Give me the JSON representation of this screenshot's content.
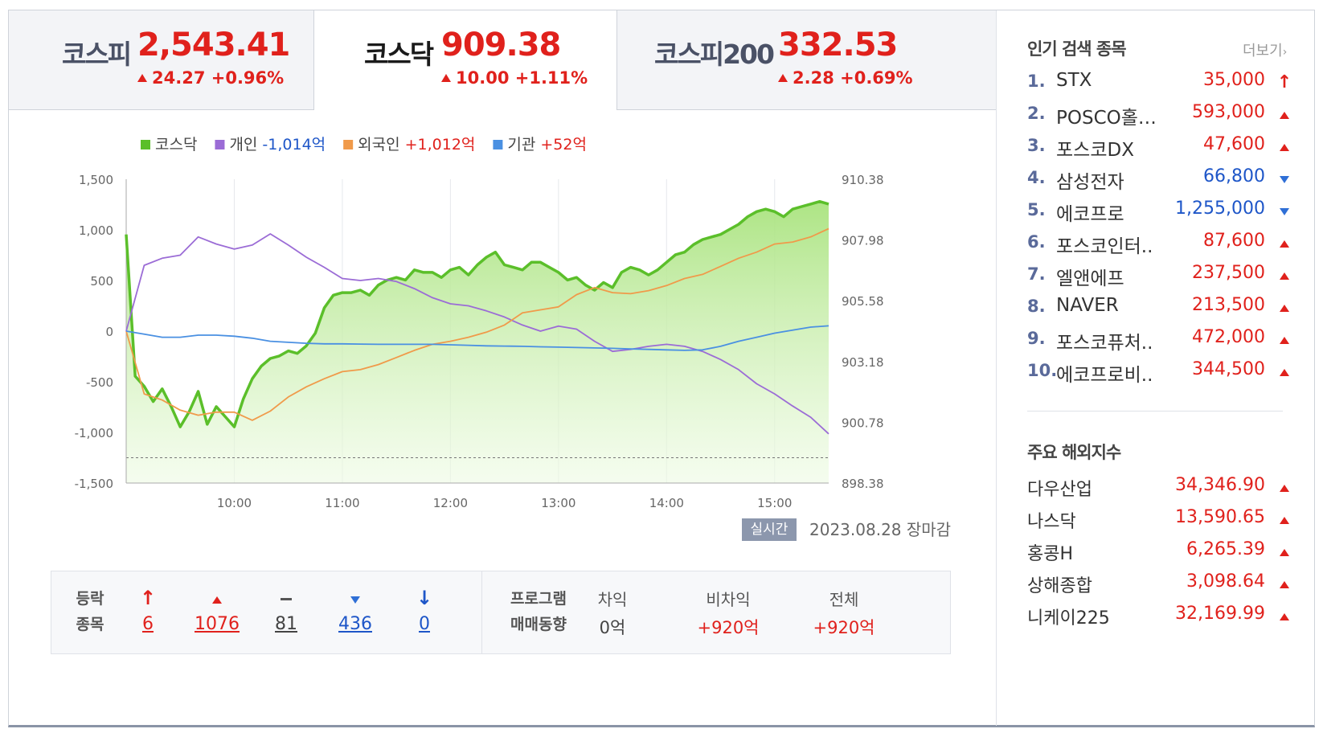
{
  "tabs": [
    {
      "name": "코스피",
      "value": "2,543.41",
      "change": "24.27 +0.96%",
      "active": false
    },
    {
      "name": "코스닥",
      "value": "909.38",
      "change": "10.00 +1.11%",
      "active": true
    },
    {
      "name": "코스피200",
      "value": "332.53",
      "change": "2.28 +0.69%",
      "active": false
    }
  ],
  "legend": [
    {
      "label": "코스닥",
      "value": "",
      "color": "#5bbf2a",
      "value_color": ""
    },
    {
      "label": "개인",
      "value": "-1,014억",
      "color": "#9b6cd6",
      "value_color": "#1e56c8"
    },
    {
      "label": "외국인",
      "value": "+1,012억",
      "color": "#f09a4a",
      "value_color": "#e0211c"
    },
    {
      "label": "기관",
      "value": "+52억",
      "color": "#4a90e2",
      "value_color": "#e0211c"
    }
  ],
  "status": {
    "realtime_label": "실시간",
    "date_label": "2023.08.28 장마감"
  },
  "chart_data": {
    "type": "line",
    "x_ticks": [
      "10:00",
      "11:00",
      "12:00",
      "13:00",
      "14:00",
      "15:00"
    ],
    "x_range": [
      "09:00",
      "15:30"
    ],
    "y_left": {
      "ticks": [
        "1,500",
        "1,000",
        "500",
        "0",
        "-500",
        "-1,000",
        "-1,500"
      ],
      "range": [
        -1500,
        1500
      ]
    },
    "y_right": {
      "ticks": [
        "910.38",
        "907.98",
        "905.58",
        "903.18",
        "900.78",
        "898.38"
      ],
      "range": [
        898.38,
        910.38
      ]
    },
    "reference_line": {
      "axis": "right",
      "value": 899.38,
      "style": "dashed"
    },
    "grid": true,
    "legend_position": "top",
    "series": [
      {
        "name": "코스닥",
        "axis": "right",
        "style": "area",
        "color": "#5bbf2a",
        "x": [
          "09:00",
          "09:05",
          "09:10",
          "09:15",
          "09:20",
          "09:25",
          "09:30",
          "09:35",
          "09:40",
          "09:45",
          "09:50",
          "09:55",
          "10:00",
          "10:05",
          "10:10",
          "10:15",
          "10:20",
          "10:25",
          "10:30",
          "10:35",
          "10:40",
          "10:45",
          "10:50",
          "10:55",
          "11:00",
          "11:05",
          "11:10",
          "11:15",
          "11:20",
          "11:25",
          "11:30",
          "11:35",
          "11:40",
          "11:45",
          "11:50",
          "11:55",
          "12:00",
          "12:05",
          "12:10",
          "12:15",
          "12:20",
          "12:25",
          "12:30",
          "12:35",
          "12:40",
          "12:45",
          "12:50",
          "12:55",
          "13:00",
          "13:05",
          "13:10",
          "13:15",
          "13:20",
          "13:25",
          "13:30",
          "13:35",
          "13:40",
          "13:45",
          "13:50",
          "13:55",
          "14:00",
          "14:05",
          "14:10",
          "14:15",
          "14:20",
          "14:25",
          "14:30",
          "14:35",
          "14:40",
          "14:45",
          "14:50",
          "14:55",
          "15:00",
          "15:05",
          "15:10",
          "15:15",
          "15:20",
          "15:25",
          "15:30"
        ],
        "y": [
          908.2,
          902.6,
          902.2,
          901.6,
          902.1,
          901.4,
          900.6,
          901.2,
          902.0,
          900.7,
          901.4,
          901.0,
          900.6,
          901.7,
          902.5,
          903.0,
          903.3,
          903.4,
          903.6,
          903.5,
          903.8,
          904.3,
          905.3,
          905.8,
          905.9,
          905.9,
          906.0,
          905.8,
          906.2,
          906.4,
          906.5,
          906.4,
          906.8,
          906.7,
          906.7,
          906.5,
          906.8,
          906.9,
          906.6,
          907.0,
          907.3,
          907.5,
          907.0,
          906.9,
          906.8,
          907.1,
          907.1,
          906.9,
          906.7,
          906.4,
          906.5,
          906.2,
          906.0,
          906.3,
          906.1,
          906.7,
          906.9,
          906.8,
          906.6,
          906.8,
          907.1,
          907.4,
          907.5,
          907.8,
          908.0,
          908.1,
          908.2,
          908.4,
          908.6,
          908.9,
          909.1,
          909.2,
          909.1,
          908.9,
          909.2,
          909.3,
          909.4,
          909.5,
          909.4
        ]
      },
      {
        "name": "개인",
        "axis": "left",
        "style": "line",
        "color": "#9b6cd6",
        "x": [
          "09:00",
          "09:10",
          "09:20",
          "09:30",
          "09:40",
          "09:50",
          "10:00",
          "10:10",
          "10:20",
          "10:30",
          "10:40",
          "10:50",
          "11:00",
          "11:10",
          "11:20",
          "11:30",
          "11:40",
          "11:50",
          "12:00",
          "12:10",
          "12:20",
          "12:30",
          "12:40",
          "12:50",
          "13:00",
          "13:10",
          "13:20",
          "13:30",
          "13:40",
          "13:50",
          "14:00",
          "14:10",
          "14:20",
          "14:30",
          "14:40",
          "14:50",
          "15:00",
          "15:10",
          "15:20",
          "15:30"
        ],
        "y": [
          0,
          650,
          720,
          750,
          930,
          860,
          810,
          850,
          960,
          850,
          730,
          630,
          520,
          500,
          520,
          490,
          420,
          330,
          270,
          250,
          200,
          140,
          60,
          0,
          50,
          20,
          -100,
          -200,
          -180,
          -150,
          -130,
          -150,
          -200,
          -280,
          -380,
          -520,
          -620,
          -740,
          -850,
          -1014
        ]
      },
      {
        "name": "외국인",
        "axis": "left",
        "style": "line",
        "color": "#f09a4a",
        "x": [
          "09:00",
          "09:10",
          "09:20",
          "09:30",
          "09:40",
          "09:50",
          "10:00",
          "10:10",
          "10:20",
          "10:30",
          "10:40",
          "10:50",
          "11:00",
          "11:10",
          "11:20",
          "11:30",
          "11:40",
          "11:50",
          "12:00",
          "12:10",
          "12:20",
          "12:30",
          "12:40",
          "12:50",
          "13:00",
          "13:10",
          "13:20",
          "13:30",
          "13:40",
          "13:50",
          "14:00",
          "14:10",
          "14:20",
          "14:30",
          "14:40",
          "14:50",
          "15:00",
          "15:10",
          "15:20",
          "15:30"
        ],
        "y": [
          0,
          -620,
          -680,
          -780,
          -830,
          -800,
          -800,
          -880,
          -790,
          -650,
          -550,
          -470,
          -400,
          -380,
          -330,
          -260,
          -190,
          -130,
          -100,
          -60,
          -10,
          60,
          180,
          210,
          240,
          360,
          430,
          380,
          370,
          400,
          450,
          520,
          560,
          640,
          720,
          780,
          860,
          880,
          930,
          1012
        ]
      },
      {
        "name": "기관",
        "axis": "left",
        "style": "line",
        "color": "#4a90e2",
        "x": [
          "09:00",
          "09:10",
          "09:20",
          "09:30",
          "09:40",
          "09:50",
          "10:00",
          "10:10",
          "10:20",
          "10:30",
          "10:40",
          "10:50",
          "11:00",
          "11:10",
          "11:20",
          "11:30",
          "11:40",
          "11:50",
          "12:00",
          "12:10",
          "12:20",
          "12:30",
          "12:40",
          "12:50",
          "13:00",
          "13:10",
          "13:20",
          "13:30",
          "13:40",
          "13:50",
          "14:00",
          "14:10",
          "14:20",
          "14:30",
          "14:40",
          "14:50",
          "15:00",
          "15:10",
          "15:20",
          "15:30"
        ],
        "y": [
          0,
          -30,
          -60,
          -60,
          -40,
          -40,
          -50,
          -70,
          -100,
          -110,
          -120,
          -125,
          -125,
          -128,
          -130,
          -130,
          -130,
          -130,
          -135,
          -140,
          -145,
          -148,
          -150,
          -155,
          -158,
          -162,
          -166,
          -170,
          -175,
          -180,
          -185,
          -190,
          -185,
          -150,
          -100,
          -60,
          -20,
          10,
          40,
          52
        ]
      }
    ]
  },
  "market_stats": {
    "head1": "등락",
    "head2": "종목",
    "items": [
      {
        "icon": "limit-up",
        "value": "6",
        "color": "red"
      },
      {
        "icon": "up",
        "value": "1076",
        "color": "red"
      },
      {
        "icon": "flat",
        "value": "81",
        "color": "gray"
      },
      {
        "icon": "down",
        "value": "436",
        "color": "blue"
      },
      {
        "icon": "limit-down",
        "value": "0",
        "color": "blue"
      }
    ],
    "program_head1": "프로그램",
    "program_head2": "매매동향",
    "program": [
      {
        "label": "차익",
        "value": "0억",
        "color": "gray"
      },
      {
        "label": "비차익",
        "value": "+920억",
        "color": "red"
      },
      {
        "label": "전체",
        "value": "+920억",
        "color": "red"
      }
    ]
  },
  "popular": {
    "title": "인기 검색 종목",
    "more_label": "더보기",
    "items": [
      {
        "rank": "1.",
        "name": "STX",
        "price": "35,000",
        "dir": "limit-up",
        "color": "red"
      },
      {
        "rank": "2.",
        "name": "POSCO홀…",
        "price": "593,000",
        "dir": "up",
        "color": "red"
      },
      {
        "rank": "3.",
        "name": "포스코DX",
        "price": "47,600",
        "dir": "up",
        "color": "red"
      },
      {
        "rank": "4.",
        "name": "삼성전자",
        "price": "66,800",
        "dir": "down",
        "color": "blue"
      },
      {
        "rank": "5.",
        "name": "에코프로",
        "price": "1,255,000",
        "dir": "down",
        "color": "blue"
      },
      {
        "rank": "6.",
        "name": "포스코인터..",
        "price": "87,600",
        "dir": "up",
        "color": "red"
      },
      {
        "rank": "7.",
        "name": "엘앤에프",
        "price": "237,500",
        "dir": "up",
        "color": "red"
      },
      {
        "rank": "8.",
        "name": "NAVER",
        "price": "213,500",
        "dir": "up",
        "color": "red"
      },
      {
        "rank": "9.",
        "name": "포스코퓨처..",
        "price": "472,000",
        "dir": "up",
        "color": "red"
      },
      {
        "rank": "10.",
        "name": "에코프로비..",
        "price": "344,500",
        "dir": "up",
        "color": "red"
      }
    ]
  },
  "global": {
    "title": "주요 해외지수",
    "items": [
      {
        "name": "다우산업",
        "value": "34,346.90"
      },
      {
        "name": "나스닥",
        "value": "13,590.65"
      },
      {
        "name": "홍콩H",
        "value": "6,265.39"
      },
      {
        "name": "상해종합",
        "value": "3,098.64"
      },
      {
        "name": "니케이225",
        "value": "32,169.99"
      }
    ]
  }
}
